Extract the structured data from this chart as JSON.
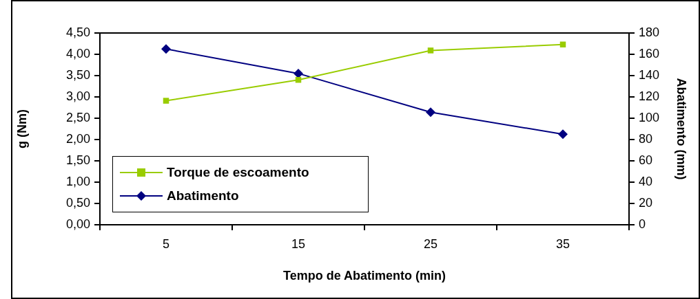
{
  "chart_data": {
    "type": "line",
    "xlabel": "Tempo de Abatimento (min)",
    "ylabel": "g (Nm)",
    "y2label": "Abatimento (mm)",
    "categories": [
      "5",
      "15",
      "25",
      "35"
    ],
    "series": [
      {
        "name": "Torque de escoamento",
        "color": "#99cc00",
        "marker": "square",
        "values": [
          2.91,
          3.4,
          4.09,
          4.23
        ]
      },
      {
        "name": "Abatimento",
        "color": "#000080",
        "marker": "diamond",
        "axis": "y2",
        "values": [
          165,
          142,
          105.6,
          85
        ]
      }
    ],
    "ylim": [
      0,
      4.5
    ],
    "yticks": [
      {
        "value": 0,
        "label": "0,00"
      },
      {
        "value": 0.5,
        "label": "0,50"
      },
      {
        "value": 1,
        "label": "1,00"
      },
      {
        "value": 1.5,
        "label": "1,50"
      },
      {
        "value": 2,
        "label": "2,00"
      },
      {
        "value": 2.5,
        "label": "2,50"
      },
      {
        "value": 3,
        "label": "3,00"
      },
      {
        "value": 3.5,
        "label": "3,50"
      },
      {
        "value": 4,
        "label": "4,00"
      },
      {
        "value": 4.5,
        "label": "4,50"
      }
    ],
    "y2lim": [
      0,
      180
    ],
    "y2ticks": [
      0,
      20,
      40,
      60,
      80,
      100,
      120,
      140,
      160,
      180
    ],
    "grid": false,
    "legend": "bottom left",
    "line_style": "solid"
  }
}
